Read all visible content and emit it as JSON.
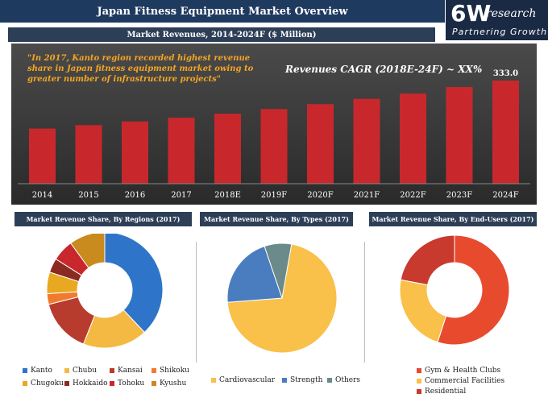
{
  "header": {
    "title": "Japan Fitness Equipment Market Overview",
    "logo_big": "6W",
    "logo_small": "research",
    "logo_tag": "Partnering Growth"
  },
  "subtitle": "Market Revenues, 2014-2024F ($ Million)",
  "quote": "\"In 2017, Kanto region recorded highest revenue share in Japan fitness equipment market owing to greater number of infrastructure projects\"",
  "cagr": "Revenues CAGR (2018E-24F) ~ XX%",
  "colors": {
    "bar": "#c8282c",
    "header": "#1f3a5f",
    "panel": "#3a3a3a"
  },
  "chart_data": [
    {
      "type": "bar",
      "categories": [
        "2014",
        "2015",
        "2016",
        "2017",
        "2018E",
        "2019F",
        "2020F",
        "2021F",
        "2022F",
        "2023F",
        "2024F"
      ],
      "values": [
        178,
        189,
        201,
        213,
        226,
        241,
        257,
        274,
        291,
        312,
        333
      ],
      "value_labels": [
        "",
        "",
        "",
        "",
        "",
        "",
        "",
        "",
        "",
        "",
        "333.0"
      ],
      "title": "Market Revenues, 2014-2024F ($ Million)"
    },
    {
      "type": "pie",
      "title": "Market Revenue Share, By Regions (2017)",
      "labels": [
        "Kanto",
        "Chubu",
        "Kansai",
        "Shikoku",
        "Chugoku",
        "Hokkaido",
        "Tohoku",
        "Kyushu"
      ],
      "values": [
        38,
        18,
        15,
        3,
        6,
        4,
        6,
        10
      ],
      "colors": [
        "#2e75c9",
        "#f4b942",
        "#b73c2e",
        "#f07a2e",
        "#e8a820",
        "#8a2a20",
        "#c8282c",
        "#c98a1e"
      ]
    },
    {
      "type": "pie",
      "title": "Market Revenue Share, By Types (2017)",
      "labels": [
        "Cardiovascular",
        "Strength",
        "Others"
      ],
      "values": [
        71,
        21,
        8
      ],
      "colors": [
        "#f9c04a",
        "#4a7cc0",
        "#6b8a8a"
      ]
    },
    {
      "type": "pie",
      "title": "Market Revenue Share, By End-Users (2017)",
      "labels": [
        "Gym & Health Clubs",
        "Commercial Facilities",
        "Residential"
      ],
      "values": [
        55,
        23,
        22
      ],
      "colors": [
        "#e84a2e",
        "#f9c04a",
        "#c8392e"
      ]
    }
  ]
}
